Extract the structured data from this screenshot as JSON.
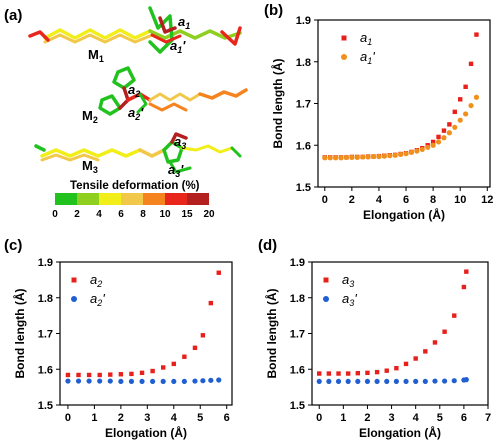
{
  "panels": {
    "a": {
      "label": "(a)",
      "molecules": [
        "M",
        "M",
        "M"
      ],
      "molecule_subs": [
        "1",
        "2",
        "3"
      ],
      "bond_labels": [
        {
          "main": "a",
          "sub": "1",
          "prime": ""
        },
        {
          "main": "a",
          "sub": "1",
          "prime": "'"
        },
        {
          "main": "a",
          "sub": "2",
          "prime": ""
        },
        {
          "main": "a",
          "sub": "2",
          "prime": "'"
        },
        {
          "main": "a",
          "sub": "3",
          "prime": ""
        },
        {
          "main": "a",
          "sub": "3",
          "prime": "'"
        }
      ],
      "colorbar": {
        "title": "Tensile deformation (%)",
        "ticks": [
          "0",
          "2",
          "4",
          "6",
          "8",
          "10",
          "15",
          "20"
        ],
        "colors": [
          "#22c21e",
          "#8fcf1f",
          "#f2ee1a",
          "#f2c84b",
          "#f5841f",
          "#e8261c",
          "#b41f1f"
        ]
      }
    }
  },
  "chart_data": [
    {
      "panel": "(b)",
      "type": "scatter",
      "xlabel": "Elongation (Å)",
      "ylabel": "Bond length (Å)",
      "xlim": [
        -0.5,
        12.2
      ],
      "ylim": [
        1.5,
        1.9
      ],
      "xticks": [
        "0",
        "2",
        "4",
        "6",
        "8",
        "10",
        "12"
      ],
      "yticks": [
        "1.5",
        "1.6",
        "1.7",
        "1.8",
        "1.9"
      ],
      "legend_position": "top-right",
      "series": [
        {
          "name": "a",
          "sub": "1",
          "prime": "",
          "marker": "square",
          "color": "#e8201c",
          "x": [
            0,
            0.4,
            0.8,
            1.2,
            1.6,
            2.0,
            2.4,
            2.8,
            3.2,
            3.6,
            4.0,
            4.4,
            4.8,
            5.2,
            5.6,
            6.0,
            6.4,
            6.8,
            7.2,
            7.6,
            8.0,
            8.4,
            8.8,
            9.2,
            9.6,
            10.0,
            10.4,
            10.8,
            11.2
          ],
          "y": [
            1.571,
            1.571,
            1.571,
            1.571,
            1.571,
            1.572,
            1.572,
            1.572,
            1.573,
            1.573,
            1.574,
            1.575,
            1.576,
            1.577,
            1.579,
            1.581,
            1.584,
            1.588,
            1.593,
            1.6,
            1.608,
            1.62,
            1.635,
            1.65,
            1.68,
            1.71,
            1.74,
            1.795,
            1.865
          ]
        },
        {
          "name": "a",
          "sub": "1",
          "prime": "'",
          "marker": "circle",
          "color": "#f0901c",
          "x": [
            0,
            0.4,
            0.8,
            1.2,
            1.6,
            2.0,
            2.4,
            2.8,
            3.2,
            3.6,
            4.0,
            4.4,
            4.8,
            5.2,
            5.6,
            6.0,
            6.4,
            6.8,
            7.2,
            7.6,
            8.0,
            8.4,
            8.8,
            9.2,
            9.6,
            10.0,
            10.4,
            10.8,
            11.2
          ],
          "y": [
            1.57,
            1.57,
            1.57,
            1.57,
            1.571,
            1.571,
            1.571,
            1.572,
            1.572,
            1.573,
            1.573,
            1.574,
            1.575,
            1.576,
            1.578,
            1.58,
            1.583,
            1.586,
            1.59,
            1.595,
            1.6,
            1.608,
            1.618,
            1.63,
            1.643,
            1.66,
            1.675,
            1.695,
            1.715
          ]
        }
      ]
    },
    {
      "panel": "(c)",
      "type": "scatter",
      "xlabel": "Elongation (Å)",
      "ylabel": "Bond length (Å)",
      "xlim": [
        -0.3,
        6.2
      ],
      "ylim": [
        1.5,
        1.9
      ],
      "xticks": [
        "0",
        "1",
        "2",
        "3",
        "4",
        "5",
        "6"
      ],
      "yticks": [
        "1.5",
        "1.6",
        "1.7",
        "1.8",
        "1.9"
      ],
      "legend_position": "top-left",
      "series": [
        {
          "name": "a",
          "sub": "2",
          "prime": "",
          "marker": "square",
          "color": "#e8201c",
          "x": [
            0,
            0.4,
            0.8,
            1.2,
            1.6,
            2.0,
            2.4,
            2.8,
            3.2,
            3.6,
            4.0,
            4.4,
            4.8,
            5.1,
            5.4,
            5.7
          ],
          "y": [
            1.584,
            1.584,
            1.584,
            1.584,
            1.585,
            1.586,
            1.587,
            1.59,
            1.595,
            1.605,
            1.615,
            1.635,
            1.66,
            1.695,
            1.785,
            1.87
          ]
        },
        {
          "name": "a",
          "sub": "2",
          "prime": "'",
          "marker": "circle",
          "color": "#1f5fd1",
          "x": [
            0,
            0.4,
            0.8,
            1.2,
            1.6,
            2.0,
            2.4,
            2.8,
            3.2,
            3.6,
            4.0,
            4.4,
            4.8,
            5.1,
            5.4,
            5.7
          ],
          "y": [
            1.567,
            1.567,
            1.567,
            1.567,
            1.567,
            1.566,
            1.566,
            1.566,
            1.566,
            1.566,
            1.566,
            1.566,
            1.567,
            1.568,
            1.569,
            1.57
          ]
        }
      ]
    },
    {
      "panel": "(d)",
      "type": "scatter",
      "xlabel": "Elongation (Å)",
      "ylabel": "Bond length (Å)",
      "xlim": [
        -0.3,
        7.0
      ],
      "ylim": [
        1.5,
        1.9
      ],
      "xticks": [
        "0",
        "1",
        "2",
        "3",
        "4",
        "5",
        "6",
        "7"
      ],
      "yticks": [
        "1.5",
        "1.6",
        "1.7",
        "1.8",
        "1.9"
      ],
      "legend_position": "top-left",
      "series": [
        {
          "name": "a",
          "sub": "3",
          "prime": "",
          "marker": "square",
          "color": "#e8201c",
          "x": [
            0,
            0.4,
            0.8,
            1.2,
            1.6,
            2.0,
            2.4,
            2.8,
            3.2,
            3.6,
            4.0,
            4.4,
            4.8,
            5.2,
            5.6,
            6.0,
            6.1
          ],
          "y": [
            1.588,
            1.588,
            1.588,
            1.588,
            1.589,
            1.59,
            1.592,
            1.596,
            1.603,
            1.615,
            1.63,
            1.65,
            1.675,
            1.705,
            1.75,
            1.83,
            1.873
          ]
        },
        {
          "name": "a",
          "sub": "3",
          "prime": "'",
          "marker": "circle",
          "color": "#1f5fd1",
          "x": [
            0,
            0.4,
            0.8,
            1.2,
            1.6,
            2.0,
            2.4,
            2.8,
            3.2,
            3.6,
            4.0,
            4.4,
            4.8,
            5.2,
            5.6,
            6.0,
            6.1
          ],
          "y": [
            1.566,
            1.566,
            1.566,
            1.566,
            1.566,
            1.566,
            1.566,
            1.566,
            1.566,
            1.566,
            1.566,
            1.566,
            1.567,
            1.567,
            1.568,
            1.57,
            1.571
          ]
        }
      ]
    }
  ]
}
